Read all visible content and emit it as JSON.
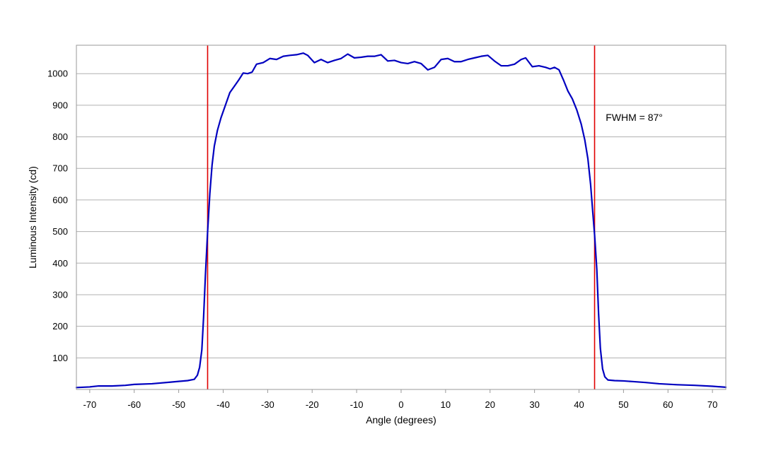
{
  "chart_data": {
    "type": "line",
    "xlabel": "Angle (degrees)",
    "ylabel": "Luminous Intensity (cd)",
    "xlim": [
      -73,
      73
    ],
    "ylim": [
      0,
      1090
    ],
    "x_ticks": [
      -70,
      -60,
      -50,
      -40,
      -30,
      -20,
      -10,
      0,
      10,
      20,
      30,
      40,
      50,
      60,
      70
    ],
    "y_ticks": [
      100,
      200,
      300,
      400,
      500,
      600,
      700,
      800,
      900,
      1000
    ],
    "grid": "horizontal",
    "colors": {
      "series": "#0000c0",
      "markers": "#e00000",
      "grid": "#b0b0b0",
      "frame": "#9a9a9a"
    },
    "annotation": {
      "text": "FWHM = 87°",
      "x": 46,
      "y": 850
    },
    "vertical_lines": [
      -43.5,
      43.5
    ],
    "series": [
      {
        "points": [
          [
            -73,
            6
          ],
          [
            -70,
            8
          ],
          [
            -68,
            11
          ],
          [
            -65,
            11
          ],
          [
            -62,
            13
          ],
          [
            -60,
            16
          ],
          [
            -56,
            18
          ],
          [
            -52,
            23
          ],
          [
            -48,
            28
          ],
          [
            -46.5,
            32
          ],
          [
            -45.8,
            45
          ],
          [
            -45.3,
            70
          ],
          [
            -44.8,
            125
          ],
          [
            -44.4,
            230
          ],
          [
            -44.0,
            360
          ],
          [
            -43.5,
            500
          ],
          [
            -43.0,
            620
          ],
          [
            -42.5,
            710
          ],
          [
            -42.0,
            770
          ],
          [
            -41.3,
            820
          ],
          [
            -40.5,
            860
          ],
          [
            -39.5,
            900
          ],
          [
            -38.5,
            940
          ],
          [
            -37.5,
            960
          ],
          [
            -36.5,
            980
          ],
          [
            -35.5,
            1002
          ],
          [
            -34.5,
            1000
          ],
          [
            -33.5,
            1005
          ],
          [
            -32.5,
            1030
          ],
          [
            -31,
            1035
          ],
          [
            -29.5,
            1048
          ],
          [
            -28,
            1045
          ],
          [
            -26.5,
            1055
          ],
          [
            -25,
            1058
          ],
          [
            -23.5,
            1060
          ],
          [
            -22,
            1065
          ],
          [
            -21,
            1058
          ],
          [
            -19.5,
            1035
          ],
          [
            -18,
            1045
          ],
          [
            -16.5,
            1035
          ],
          [
            -15,
            1042
          ],
          [
            -13.5,
            1048
          ],
          [
            -12,
            1062
          ],
          [
            -10.5,
            1050
          ],
          [
            -9,
            1052
          ],
          [
            -7.5,
            1055
          ],
          [
            -6,
            1055
          ],
          [
            -4.5,
            1060
          ],
          [
            -3,
            1040
          ],
          [
            -1.5,
            1042
          ],
          [
            0,
            1035
          ],
          [
            1.5,
            1032
          ],
          [
            3,
            1038
          ],
          [
            4.5,
            1032
          ],
          [
            6,
            1012
          ],
          [
            7.5,
            1020
          ],
          [
            9,
            1045
          ],
          [
            10.5,
            1048
          ],
          [
            12,
            1038
          ],
          [
            13.5,
            1038
          ],
          [
            15,
            1045
          ],
          [
            16.5,
            1050
          ],
          [
            18,
            1055
          ],
          [
            19.5,
            1058
          ],
          [
            21,
            1040
          ],
          [
            22.5,
            1025
          ],
          [
            24,
            1025
          ],
          [
            25.5,
            1030
          ],
          [
            27,
            1045
          ],
          [
            28,
            1050
          ],
          [
            29.5,
            1022
          ],
          [
            31,
            1025
          ],
          [
            32.5,
            1020
          ],
          [
            33.5,
            1015
          ],
          [
            34.5,
            1020
          ],
          [
            35.5,
            1012
          ],
          [
            36.5,
            980
          ],
          [
            37.5,
            945
          ],
          [
            38.5,
            920
          ],
          [
            39.5,
            885
          ],
          [
            40.5,
            840
          ],
          [
            41.3,
            790
          ],
          [
            42.0,
            730
          ],
          [
            42.6,
            650
          ],
          [
            43.1,
            560
          ],
          [
            43.5,
            490
          ],
          [
            44.0,
            380
          ],
          [
            44.4,
            240
          ],
          [
            44.8,
            130
          ],
          [
            45.3,
            65
          ],
          [
            45.8,
            40
          ],
          [
            46.5,
            30
          ],
          [
            48,
            28
          ],
          [
            50,
            27
          ],
          [
            52,
            25
          ],
          [
            55,
            22
          ],
          [
            58,
            18
          ],
          [
            62,
            15
          ],
          [
            66,
            13
          ],
          [
            70,
            10
          ],
          [
            73,
            7
          ]
        ]
      }
    ]
  }
}
